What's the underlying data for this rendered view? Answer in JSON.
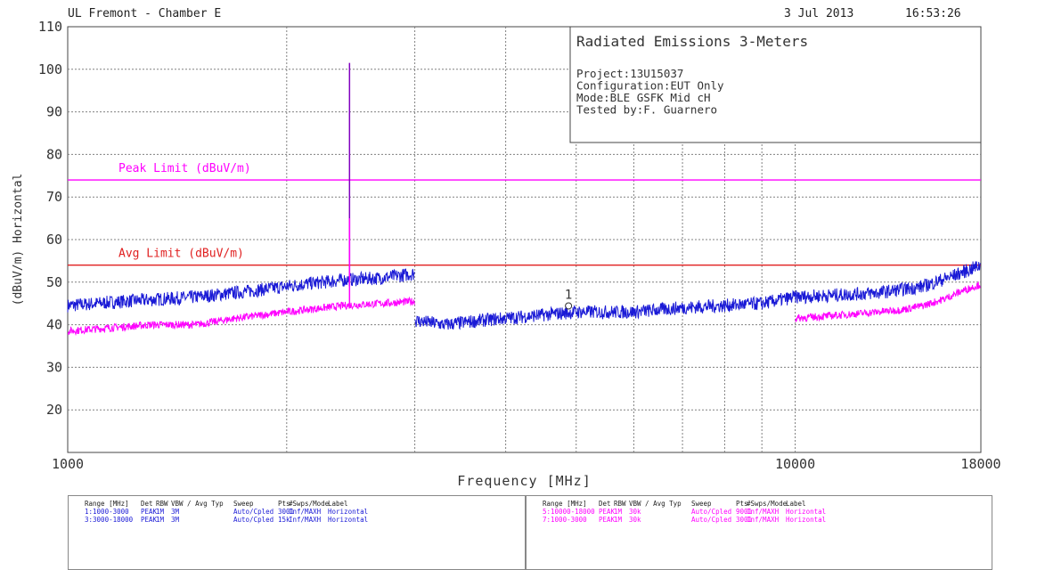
{
  "header": {
    "site": "UL Fremont - Chamber E",
    "date": "3 Jul 2013",
    "time": "16:53:26"
  },
  "info_box": {
    "title": "Radiated Emissions 3-Meters",
    "lines": [
      "Project:13U15037",
      "Configuration:EUT Only",
      "Mode:BLE GSFK Mid cH",
      "Tested by:F. Guarnero"
    ]
  },
  "colors": {
    "series_blue": "#1a1ad6",
    "series_magenta": "#ff00ff",
    "peak_limit": "#ff00ff",
    "avg_limit": "#e02020",
    "spike": "#8000c0",
    "grid": "#808080"
  },
  "chart_data": {
    "type": "line",
    "x_scale": "log",
    "xlabel": "Frequency [MHz]",
    "ylabel": "(dBuV/m) Horizontal",
    "xlim": [
      1000,
      18000
    ],
    "ylim": [
      10,
      110
    ],
    "x_tick_labels": [
      {
        "value": 1000,
        "label": "1000"
      },
      {
        "value": 10000,
        "label": "10000"
      },
      {
        "value": 18000,
        "label": "18000"
      }
    ],
    "y_ticks": [
      10,
      20,
      30,
      40,
      50,
      60,
      70,
      80,
      90,
      100,
      110
    ],
    "grid": true,
    "limits": [
      {
        "name": "Peak Limit (dBuV/m)",
        "value": 74
      },
      {
        "name": "Avg Limit (dBuV/m)",
        "value": 54
      }
    ],
    "series": [
      {
        "color": "blue",
        "x": [
          1000,
          1200,
          1500,
          1800,
          2100,
          2400,
          2700,
          3000
        ],
        "y": [
          44.5,
          45.5,
          46.5,
          48,
          49.5,
          50.5,
          51,
          52
        ]
      },
      {
        "color": "magenta",
        "x": [
          1000,
          1300,
          1500,
          1700,
          2000,
          2400,
          2700,
          3000
        ],
        "y": [
          38.5,
          40,
          40,
          41.5,
          43,
          44.5,
          45,
          45.5
        ]
      },
      {
        "color": "blue",
        "x": [
          3000,
          3300,
          3700,
          4300,
          5000,
          6000,
          7000,
          8000,
          9000,
          10000,
          11500,
          13000,
          15000,
          16500,
          18000
        ],
        "y": [
          41,
          40,
          41,
          42,
          43,
          43,
          44,
          44.5,
          45,
          46.5,
          47,
          47.5,
          49,
          51.5,
          54
        ]
      },
      {
        "color": "magenta",
        "x": [
          10000,
          11000,
          12000,
          13000,
          14000,
          15000,
          16000,
          17000,
          18000
        ],
        "y": [
          41.5,
          42,
          42.5,
          43,
          43.5,
          44.5,
          46,
          48,
          49.5
        ]
      }
    ],
    "spikes": [
      {
        "x": 2440,
        "y": 101.5,
        "base": 51
      },
      {
        "x": 2440,
        "y": 65,
        "base": 45
      }
    ],
    "markers": [
      {
        "label": "1",
        "x": 4880,
        "y": 44
      }
    ]
  },
  "bottom_tables": [
    {
      "color": "blue",
      "header": [
        "Range [MHz]",
        "Det",
        "RBW",
        "VBW / Avg Typ",
        "Sweep",
        "Pts",
        "#Swps/Mode",
        "Label"
      ],
      "rows": [
        [
          "1:1000-3000",
          "PEAK",
          "1M",
          "3M",
          "Auto/Cpled",
          "3001",
          "Inf/MAXH",
          "Horizontal"
        ],
        [
          "3:3000-18000",
          "PEAK",
          "1M",
          "3M",
          "Auto/Cpled",
          "15k",
          "Inf/MAXH",
          "Horizontal"
        ]
      ]
    },
    {
      "color": "magenta",
      "header": [
        "Range [MHz]",
        "Det",
        "RBW",
        "VBW / Avg Typ",
        "Sweep",
        "Pts",
        "#Swps/Mode",
        "Label"
      ],
      "rows": [
        [
          "5:10000-18000",
          "PEAK",
          "1M",
          "30k",
          "Auto/Cpled",
          "9001",
          "Inf/MAXH",
          "Horizontal"
        ],
        [
          "7:1000-3000",
          "PEAK",
          "1M",
          "30k",
          "Auto/Cpled",
          "3001",
          "Inf/MAXH",
          "Horizontal"
        ]
      ]
    }
  ]
}
